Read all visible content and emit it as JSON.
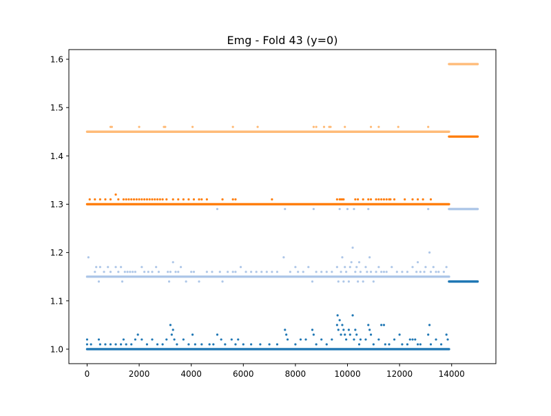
{
  "chart_data": {
    "type": "scatter",
    "title": "Emg - Fold 43 (y=0)",
    "xlabel": "",
    "ylabel": "",
    "xlim": [
      -700,
      15700
    ],
    "ylim": [
      0.97,
      1.62
    ],
    "xticks": [
      0,
      2000,
      4000,
      6000,
      8000,
      10000,
      12000,
      14000
    ],
    "yticks": [
      1.0,
      1.1,
      1.2,
      1.3,
      1.4,
      1.5,
      1.6
    ],
    "grid": false,
    "legend": "none",
    "split_x": 13900,
    "x_end": 14999,
    "series": [
      {
        "color": "#1f77b4",
        "baseline": 1.0,
        "baseline_after": 1.14,
        "outliers": [
          [
            0,
            1.02
          ],
          [
            0,
            1.01
          ],
          [
            150,
            1.01
          ],
          [
            450,
            1.02
          ],
          [
            500,
            1.01
          ],
          [
            700,
            1.01
          ],
          [
            900,
            1.01
          ],
          [
            1100,
            1.01
          ],
          [
            1300,
            1.01
          ],
          [
            1400,
            1.02
          ],
          [
            1500,
            1.01
          ],
          [
            1700,
            1.01
          ],
          [
            1850,
            1.02
          ],
          [
            1950,
            1.03
          ],
          [
            2100,
            1.02
          ],
          [
            2300,
            1.01
          ],
          [
            2500,
            1.02
          ],
          [
            2700,
            1.01
          ],
          [
            2900,
            1.01
          ],
          [
            3050,
            1.02
          ],
          [
            3200,
            1.05
          ],
          [
            3250,
            1.03
          ],
          [
            3300,
            1.04
          ],
          [
            3350,
            1.02
          ],
          [
            3450,
            1.01
          ],
          [
            3700,
            1.02
          ],
          [
            3900,
            1.01
          ],
          [
            4050,
            1.03
          ],
          [
            4150,
            1.01
          ],
          [
            4400,
            1.01
          ],
          [
            4700,
            1.01
          ],
          [
            4850,
            1.01
          ],
          [
            5000,
            1.03
          ],
          [
            5150,
            1.02
          ],
          [
            5300,
            1.01
          ],
          [
            5550,
            1.02
          ],
          [
            5700,
            1.01
          ],
          [
            5800,
            1.02
          ],
          [
            6000,
            1.01
          ],
          [
            6300,
            1.01
          ],
          [
            6650,
            1.01
          ],
          [
            7000,
            1.01
          ],
          [
            7300,
            1.01
          ],
          [
            7600,
            1.04
          ],
          [
            7650,
            1.03
          ],
          [
            7700,
            1.02
          ],
          [
            8000,
            1.01
          ],
          [
            8200,
            1.02
          ],
          [
            8400,
            1.02
          ],
          [
            8650,
            1.04
          ],
          [
            8700,
            1.03
          ],
          [
            8800,
            1.01
          ],
          [
            9000,
            1.02
          ],
          [
            9200,
            1.01
          ],
          [
            9400,
            1.02
          ],
          [
            9600,
            1.05
          ],
          [
            9620,
            1.07
          ],
          [
            9650,
            1.04
          ],
          [
            9700,
            1.06
          ],
          [
            9750,
            1.03
          ],
          [
            9800,
            1.05
          ],
          [
            9850,
            1.04
          ],
          [
            9900,
            1.03
          ],
          [
            9950,
            1.02
          ],
          [
            10050,
            1.04
          ],
          [
            10100,
            1.03
          ],
          [
            10200,
            1.07
          ],
          [
            10250,
            1.02
          ],
          [
            10300,
            1.04
          ],
          [
            10350,
            1.03
          ],
          [
            10450,
            1.01
          ],
          [
            10500,
            1.02
          ],
          [
            10700,
            1.02
          ],
          [
            10800,
            1.05
          ],
          [
            10850,
            1.04
          ],
          [
            10900,
            1.03
          ],
          [
            11000,
            1.01
          ],
          [
            11200,
            1.02
          ],
          [
            11300,
            1.05
          ],
          [
            11400,
            1.05
          ],
          [
            11450,
            1.01
          ],
          [
            11600,
            1.01
          ],
          [
            11800,
            1.02
          ],
          [
            12000,
            1.03
          ],
          [
            12100,
            1.01
          ],
          [
            12300,
            1.01
          ],
          [
            12400,
            1.02
          ],
          [
            12500,
            1.02
          ],
          [
            12600,
            1.02
          ],
          [
            12700,
            1.01
          ],
          [
            12800,
            1.01
          ],
          [
            13100,
            1.03
          ],
          [
            13150,
            1.05
          ],
          [
            13200,
            1.01
          ],
          [
            13400,
            1.02
          ],
          [
            13600,
            1.01
          ],
          [
            13800,
            1.03
          ],
          [
            13850,
            1.02
          ]
        ]
      },
      {
        "color": "#aec7e8",
        "baseline": 1.15,
        "baseline_after": 1.29,
        "outliers": [
          [
            50,
            1.19
          ],
          [
            300,
            1.16
          ],
          [
            350,
            1.17
          ],
          [
            450,
            1.14
          ],
          [
            500,
            1.17
          ],
          [
            650,
            1.16
          ],
          [
            800,
            1.17
          ],
          [
            900,
            1.16
          ],
          [
            1100,
            1.17
          ],
          [
            1200,
            1.16
          ],
          [
            1300,
            1.17
          ],
          [
            1350,
            1.14
          ],
          [
            1450,
            1.16
          ],
          [
            1550,
            1.16
          ],
          [
            1650,
            1.16
          ],
          [
            1750,
            1.16
          ],
          [
            1850,
            1.16
          ],
          [
            2100,
            1.17
          ],
          [
            2200,
            1.16
          ],
          [
            2350,
            1.16
          ],
          [
            2500,
            1.16
          ],
          [
            2650,
            1.17
          ],
          [
            2750,
            1.16
          ],
          [
            3100,
            1.16
          ],
          [
            3150,
            1.14
          ],
          [
            3200,
            1.16
          ],
          [
            3300,
            1.18
          ],
          [
            3400,
            1.16
          ],
          [
            3500,
            1.16
          ],
          [
            3600,
            1.17
          ],
          [
            3800,
            1.14
          ],
          [
            4000,
            1.16
          ],
          [
            4100,
            1.16
          ],
          [
            4300,
            1.14
          ],
          [
            4600,
            1.16
          ],
          [
            4800,
            1.16
          ],
          [
            5000,
            1.29
          ],
          [
            5100,
            1.16
          ],
          [
            5200,
            1.14
          ],
          [
            5400,
            1.16
          ],
          [
            5600,
            1.16
          ],
          [
            5700,
            1.16
          ],
          [
            5900,
            1.17
          ],
          [
            6100,
            1.16
          ],
          [
            6300,
            1.16
          ],
          [
            6500,
            1.16
          ],
          [
            6700,
            1.16
          ],
          [
            6900,
            1.16
          ],
          [
            7100,
            1.16
          ],
          [
            7300,
            1.16
          ],
          [
            7550,
            1.19
          ],
          [
            7600,
            1.29
          ],
          [
            7800,
            1.16
          ],
          [
            8000,
            1.17
          ],
          [
            8100,
            1.16
          ],
          [
            8300,
            1.16
          ],
          [
            8500,
            1.17
          ],
          [
            8650,
            1.14
          ],
          [
            8700,
            1.29
          ],
          [
            8800,
            1.16
          ],
          [
            9000,
            1.16
          ],
          [
            9200,
            1.16
          ],
          [
            9400,
            1.16
          ],
          [
            9600,
            1.17
          ],
          [
            9650,
            1.14
          ],
          [
            9700,
            1.29
          ],
          [
            9750,
            1.16
          ],
          [
            9800,
            1.19
          ],
          [
            9850,
            1.14
          ],
          [
            9900,
            1.17
          ],
          [
            9950,
            1.16
          ],
          [
            10000,
            1.29
          ],
          [
            10050,
            1.14
          ],
          [
            10100,
            1.17
          ],
          [
            10150,
            1.18
          ],
          [
            10200,
            1.21
          ],
          [
            10250,
            1.29
          ],
          [
            10300,
            1.16
          ],
          [
            10350,
            1.17
          ],
          [
            10400,
            1.14
          ],
          [
            10450,
            1.18
          ],
          [
            10500,
            1.16
          ],
          [
            10600,
            1.14
          ],
          [
            10700,
            1.17
          ],
          [
            10750,
            1.16
          ],
          [
            10800,
            1.29
          ],
          [
            10850,
            1.19
          ],
          [
            10900,
            1.16
          ],
          [
            11000,
            1.14
          ],
          [
            11100,
            1.16
          ],
          [
            11200,
            1.17
          ],
          [
            11300,
            1.16
          ],
          [
            11400,
            1.16
          ],
          [
            11500,
            1.16
          ],
          [
            11700,
            1.17
          ],
          [
            11900,
            1.16
          ],
          [
            12100,
            1.16
          ],
          [
            12300,
            1.16
          ],
          [
            12500,
            1.17
          ],
          [
            12650,
            1.16
          ],
          [
            12700,
            1.18
          ],
          [
            12800,
            1.16
          ],
          [
            12950,
            1.16
          ],
          [
            13000,
            1.17
          ],
          [
            13100,
            1.29
          ],
          [
            13150,
            1.2
          ],
          [
            13200,
            1.16
          ],
          [
            13300,
            1.17
          ],
          [
            13400,
            1.16
          ],
          [
            13500,
            1.16
          ],
          [
            13700,
            1.16
          ],
          [
            13800,
            1.17
          ]
        ]
      },
      {
        "color": "#ff7f0e",
        "baseline": 1.3,
        "baseline_after": 1.44,
        "outliers": [
          [
            100,
            1.31
          ],
          [
            300,
            1.31
          ],
          [
            500,
            1.31
          ],
          [
            700,
            1.31
          ],
          [
            900,
            1.31
          ],
          [
            1100,
            1.32
          ],
          [
            1200,
            1.31
          ],
          [
            1400,
            1.31
          ],
          [
            1500,
            1.31
          ],
          [
            1600,
            1.31
          ],
          [
            1700,
            1.31
          ],
          [
            1800,
            1.31
          ],
          [
            1900,
            1.31
          ],
          [
            2000,
            1.31
          ],
          [
            2100,
            1.31
          ],
          [
            2200,
            1.31
          ],
          [
            2300,
            1.31
          ],
          [
            2400,
            1.31
          ],
          [
            2500,
            1.31
          ],
          [
            2600,
            1.31
          ],
          [
            2700,
            1.31
          ],
          [
            2800,
            1.31
          ],
          [
            2900,
            1.31
          ],
          [
            3050,
            1.31
          ],
          [
            3300,
            1.31
          ],
          [
            3500,
            1.31
          ],
          [
            3700,
            1.31
          ],
          [
            3900,
            1.31
          ],
          [
            4100,
            1.31
          ],
          [
            4300,
            1.31
          ],
          [
            4400,
            1.31
          ],
          [
            4600,
            1.31
          ],
          [
            5200,
            1.31
          ],
          [
            5600,
            1.31
          ],
          [
            5700,
            1.31
          ],
          [
            7100,
            1.31
          ],
          [
            9600,
            1.31
          ],
          [
            9700,
            1.31
          ],
          [
            9750,
            1.31
          ],
          [
            9800,
            1.31
          ],
          [
            9850,
            1.31
          ],
          [
            10300,
            1.31
          ],
          [
            10400,
            1.31
          ],
          [
            10600,
            1.31
          ],
          [
            10800,
            1.31
          ],
          [
            10900,
            1.31
          ],
          [
            11100,
            1.31
          ],
          [
            11200,
            1.31
          ],
          [
            11300,
            1.31
          ],
          [
            11400,
            1.31
          ],
          [
            11500,
            1.31
          ],
          [
            11600,
            1.31
          ],
          [
            11650,
            1.31
          ],
          [
            11800,
            1.31
          ],
          [
            12200,
            1.31
          ],
          [
            12500,
            1.31
          ],
          [
            12700,
            1.31
          ],
          [
            12900,
            1.31
          ],
          [
            13200,
            1.31
          ]
        ]
      },
      {
        "color": "#ffbb78",
        "baseline": 1.45,
        "baseline_after": 1.59,
        "outliers": [
          [
            900,
            1.46
          ],
          [
            950,
            1.46
          ],
          [
            2000,
            1.46
          ],
          [
            2950,
            1.46
          ],
          [
            3000,
            1.46
          ],
          [
            4050,
            1.46
          ],
          [
            5600,
            1.46
          ],
          [
            6550,
            1.46
          ],
          [
            8700,
            1.46
          ],
          [
            8800,
            1.46
          ],
          [
            9100,
            1.46
          ],
          [
            9300,
            1.46
          ],
          [
            9350,
            1.46
          ],
          [
            9900,
            1.46
          ],
          [
            10900,
            1.46
          ],
          [
            11200,
            1.46
          ],
          [
            11950,
            1.46
          ],
          [
            13100,
            1.46
          ]
        ]
      }
    ]
  }
}
